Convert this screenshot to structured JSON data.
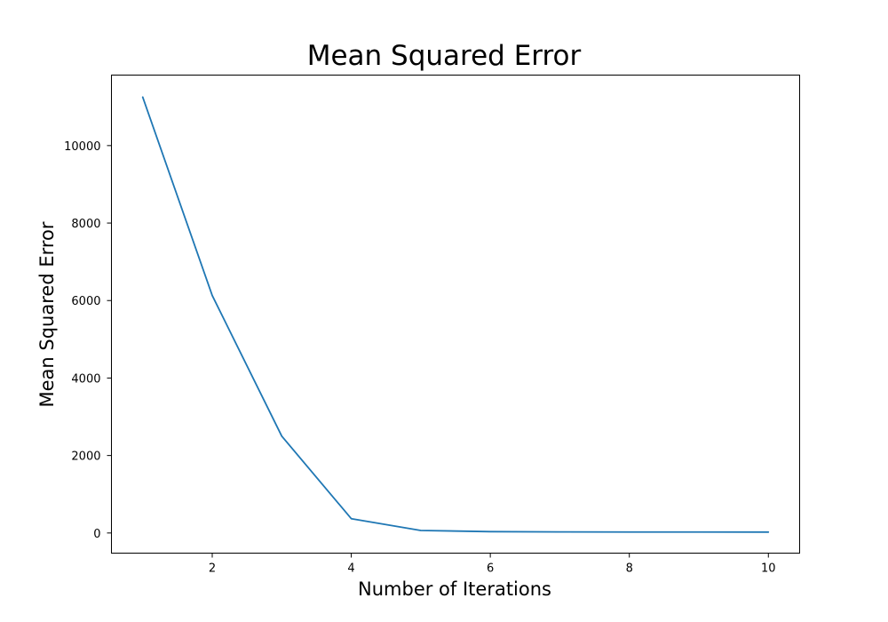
{
  "chart_data": {
    "type": "line",
    "title": "Mean Squared Error",
    "xlabel": "Number of Iterations",
    "ylabel": "Mean Squared Error",
    "xlim": [
      0.55,
      10.45
    ],
    "ylim": [
      -520,
      11820
    ],
    "xticks": [
      2,
      4,
      6,
      8,
      10
    ],
    "yticks": [
      0,
      2000,
      4000,
      6000,
      8000,
      10000
    ],
    "grid": false,
    "legend": "none",
    "series": [
      {
        "color": "#1f77b4",
        "x": [
          1,
          2,
          3,
          4,
          5,
          6,
          7,
          8,
          9,
          10
        ],
        "y": [
          11250,
          6130,
          2500,
          370,
          65,
          35,
          28,
          25,
          24,
          23
        ]
      }
    ]
  }
}
